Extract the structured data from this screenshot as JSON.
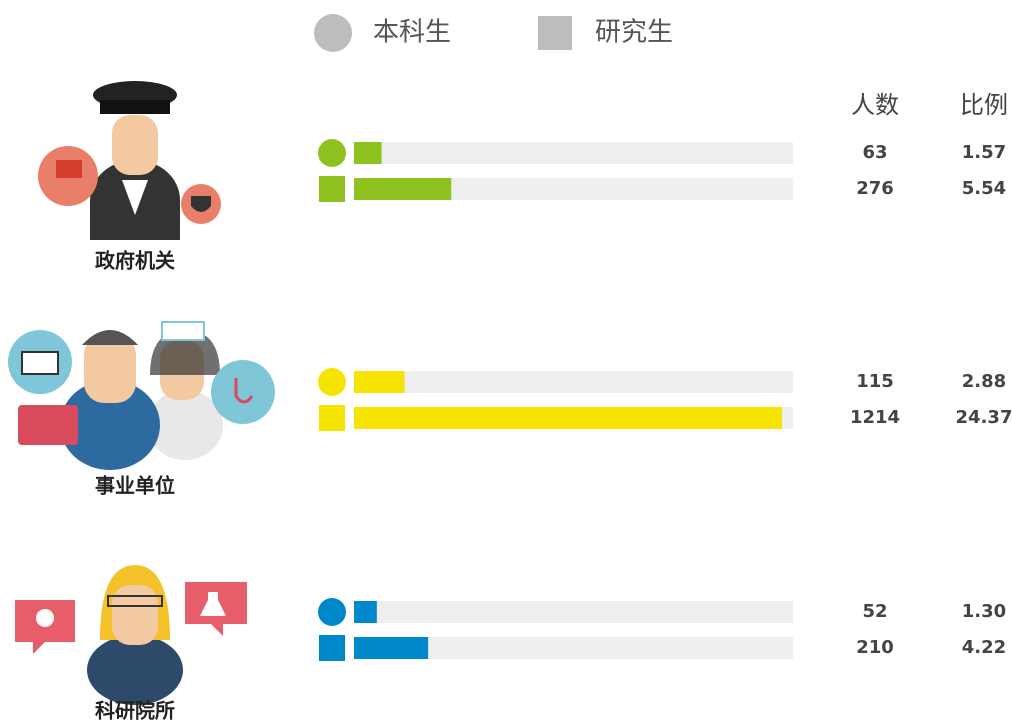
{
  "chart_data": {
    "type": "bar",
    "categories": [
      "政府机关",
      "事业单位",
      "科研院所"
    ],
    "colors": [
      "#8dc21f",
      "#f5e400",
      "#0088cc"
    ],
    "count_header": "人数",
    "ratio_header": "比例",
    "xlim": [
      0,
      25
    ],
    "series": [
      {
        "name": "本科生",
        "marker": "circle",
        "color": "#bdbdbd",
        "counts": [
          63,
          115,
          52
        ],
        "values": [
          1.57,
          2.88,
          1.3
        ],
        "value_labels": [
          "1.57",
          "2.88",
          "1.30"
        ]
      },
      {
        "name": "研究生",
        "marker": "square",
        "color": "#bdbdbd",
        "counts": [
          276,
          1214,
          210
        ],
        "values": [
          5.54,
          24.37,
          4.22
        ],
        "value_labels": [
          "5.54",
          "24.37",
          "4.22"
        ]
      }
    ]
  }
}
